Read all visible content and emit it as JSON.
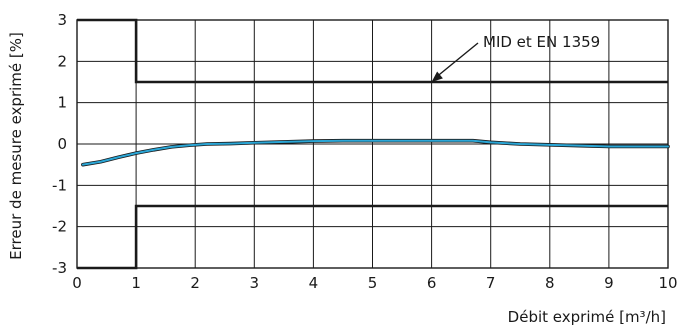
{
  "chart_data": {
    "type": "line",
    "title": "",
    "xlabel": "Débit exprimé [m³/h]",
    "ylabel": "Erreur de mesure exprimé [%]",
    "xlim": [
      0,
      10
    ],
    "ylim": [
      -3,
      3
    ],
    "x_ticks": [
      "0",
      "1",
      "2",
      "3",
      "4",
      "5",
      "6",
      "7",
      "8",
      "9",
      "10"
    ],
    "y_ticks": [
      "3",
      "2",
      "1",
      "0",
      "-1",
      "-2",
      "-3"
    ],
    "grid": true,
    "limit_lines": [
      {
        "x": [
          0,
          1,
          1,
          10
        ],
        "y": [
          3,
          3,
          1.5,
          1.5
        ],
        "color": "#1a1a1a"
      },
      {
        "x": [
          0,
          1,
          1,
          10
        ],
        "y": [
          -3,
          -3,
          -1.5,
          -1.5
        ],
        "color": "#1a1a1a"
      }
    ],
    "series": [
      {
        "color": "#2aa6d6",
        "outline_color": "#1a1a1a",
        "x": [
          0.1,
          0.4,
          0.7,
          1.0,
          1.3,
          1.6,
          1.9,
          2.2,
          2.6,
          3.0,
          3.5,
          4.0,
          4.5,
          5.0,
          5.5,
          6.0,
          6.7,
          7.0,
          7.5,
          8.0,
          8.5,
          9.0,
          9.5,
          10.0
        ],
        "y": [
          -0.5,
          -0.43,
          -0.32,
          -0.22,
          -0.14,
          -0.07,
          -0.03,
          0.0,
          0.01,
          0.03,
          0.05,
          0.07,
          0.08,
          0.08,
          0.08,
          0.08,
          0.08,
          0.04,
          0.0,
          -0.02,
          -0.04,
          -0.06,
          -0.06,
          -0.06
        ]
      }
    ],
    "annotations": [
      {
        "text": "MID et EN 1359",
        "arrow_to": [
          6.0,
          1.5
        ]
      }
    ]
  }
}
